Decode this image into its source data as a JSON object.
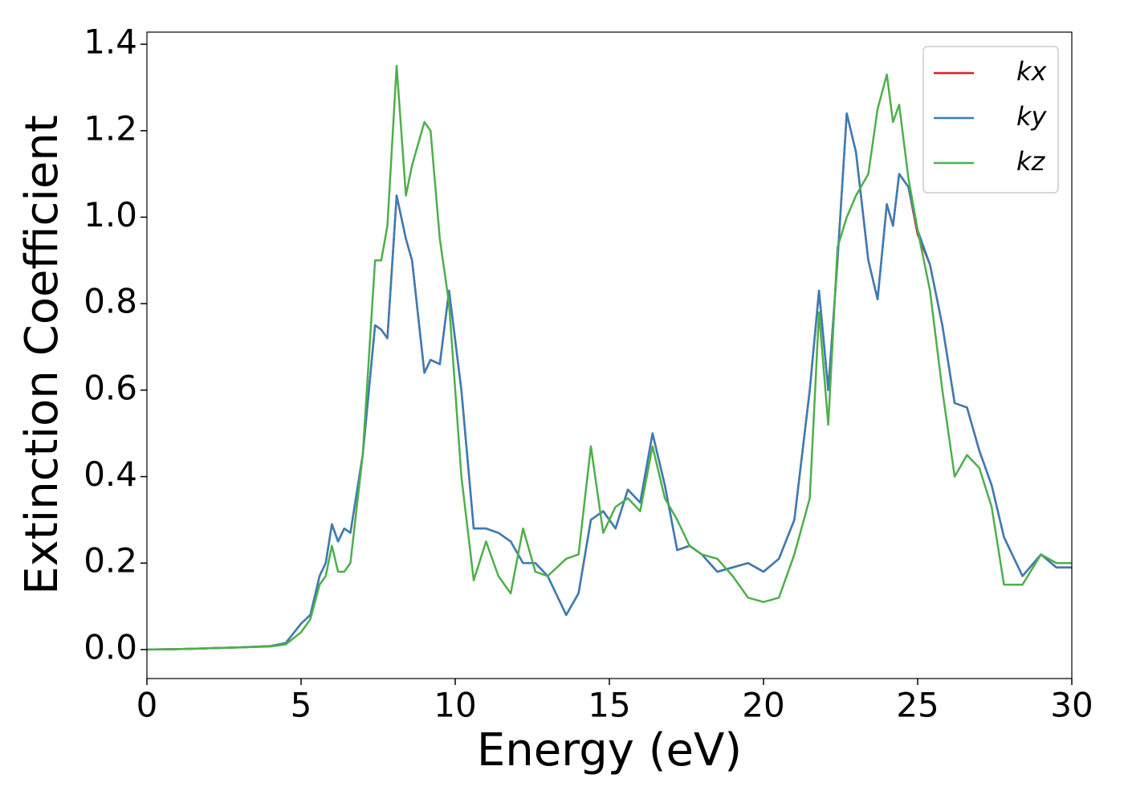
{
  "chart_data": {
    "type": "line",
    "xlabel": "Energy (eV)",
    "ylabel": "Extinction Coefficient",
    "x": [
      0,
      1,
      2,
      3,
      4,
      4.5,
      5,
      5.3,
      5.6,
      5.8,
      6,
      6.2,
      6.4,
      6.6,
      7,
      7.4,
      7.6,
      7.8,
      8.1,
      8.4,
      8.6,
      9,
      9.2,
      9.5,
      9.8,
      10.2,
      10.6,
      11,
      11.4,
      11.8,
      12.2,
      12.6,
      13,
      13.6,
      14,
      14.4,
      14.8,
      15.2,
      15.6,
      16,
      16.4,
      16.8,
      17.2,
      17.6,
      18,
      18.5,
      19,
      19.5,
      20,
      20.5,
      21,
      21.5,
      21.8,
      22.1,
      22.4,
      22.7,
      23,
      23.4,
      23.7,
      24,
      24.2,
      24.4,
      24.7,
      25,
      25.4,
      25.8,
      26.2,
      26.6,
      27,
      27.4,
      27.8,
      28.4,
      29,
      29.5,
      30
    ],
    "series": [
      {
        "name": "kx",
        "color": "#e41a1c",
        "values": [
          0,
          0.001,
          0.003,
          0.005,
          0.008,
          0.015,
          0.06,
          0.08,
          0.17,
          0.2,
          0.29,
          0.25,
          0.28,
          0.27,
          0.45,
          0.75,
          0.74,
          0.72,
          1.05,
          0.95,
          0.9,
          0.64,
          0.67,
          0.66,
          0.83,
          0.6,
          0.28,
          0.28,
          0.27,
          0.25,
          0.2,
          0.2,
          0.17,
          0.08,
          0.13,
          0.3,
          0.32,
          0.28,
          0.37,
          0.34,
          0.5,
          0.38,
          0.23,
          0.24,
          0.22,
          0.18,
          0.19,
          0.2,
          0.18,
          0.21,
          0.3,
          0.6,
          0.83,
          0.6,
          0.9,
          1.24,
          1.15,
          0.9,
          0.81,
          1.03,
          0.98,
          1.1,
          1.07,
          0.96,
          0.89,
          0.75,
          0.57,
          0.56,
          0.46,
          0.38,
          0.26,
          0.17,
          0.22,
          0.19,
          0.19
        ]
      },
      {
        "name": "ky",
        "color": "#377eb8",
        "values": [
          0,
          0.001,
          0.003,
          0.005,
          0.008,
          0.015,
          0.06,
          0.08,
          0.17,
          0.2,
          0.29,
          0.25,
          0.28,
          0.27,
          0.45,
          0.75,
          0.74,
          0.72,
          1.05,
          0.95,
          0.9,
          0.64,
          0.67,
          0.66,
          0.83,
          0.6,
          0.28,
          0.28,
          0.27,
          0.25,
          0.2,
          0.2,
          0.17,
          0.08,
          0.13,
          0.3,
          0.32,
          0.28,
          0.37,
          0.34,
          0.5,
          0.38,
          0.23,
          0.24,
          0.22,
          0.18,
          0.19,
          0.2,
          0.18,
          0.21,
          0.3,
          0.6,
          0.83,
          0.6,
          0.9,
          1.24,
          1.15,
          0.9,
          0.81,
          1.03,
          0.98,
          1.1,
          1.07,
          0.97,
          0.89,
          0.75,
          0.57,
          0.56,
          0.46,
          0.38,
          0.26,
          0.17,
          0.22,
          0.19,
          0.19
        ]
      },
      {
        "name": "kz",
        "color": "#4daf4a",
        "values": [
          0,
          0.001,
          0.003,
          0.005,
          0.007,
          0.012,
          0.04,
          0.07,
          0.15,
          0.17,
          0.24,
          0.18,
          0.18,
          0.2,
          0.45,
          0.9,
          0.9,
          0.98,
          1.35,
          1.05,
          1.12,
          1.22,
          1.2,
          0.95,
          0.8,
          0.4,
          0.16,
          0.25,
          0.17,
          0.13,
          0.28,
          0.18,
          0.17,
          0.21,
          0.22,
          0.47,
          0.27,
          0.33,
          0.35,
          0.32,
          0.47,
          0.35,
          0.3,
          0.24,
          0.22,
          0.21,
          0.17,
          0.12,
          0.11,
          0.12,
          0.22,
          0.35,
          0.78,
          0.52,
          0.93,
          1.0,
          1.05,
          1.1,
          1.25,
          1.33,
          1.22,
          1.26,
          1.09,
          0.97,
          0.83,
          0.6,
          0.4,
          0.45,
          0.42,
          0.33,
          0.15,
          0.15,
          0.22,
          0.2,
          0.2
        ]
      }
    ],
    "xlim": [
      0,
      30
    ],
    "xticks": [
      0,
      5,
      10,
      15,
      20,
      25,
      30
    ],
    "ylim": [
      -0.067,
      1.428
    ],
    "yticks": [
      {
        "value": 0,
        "label": "0.0"
      },
      0.2,
      0.4,
      0.6,
      0.8,
      {
        "value": 1,
        "label": "1.0"
      },
      1.2,
      1.4
    ],
    "legend": "upper right"
  }
}
